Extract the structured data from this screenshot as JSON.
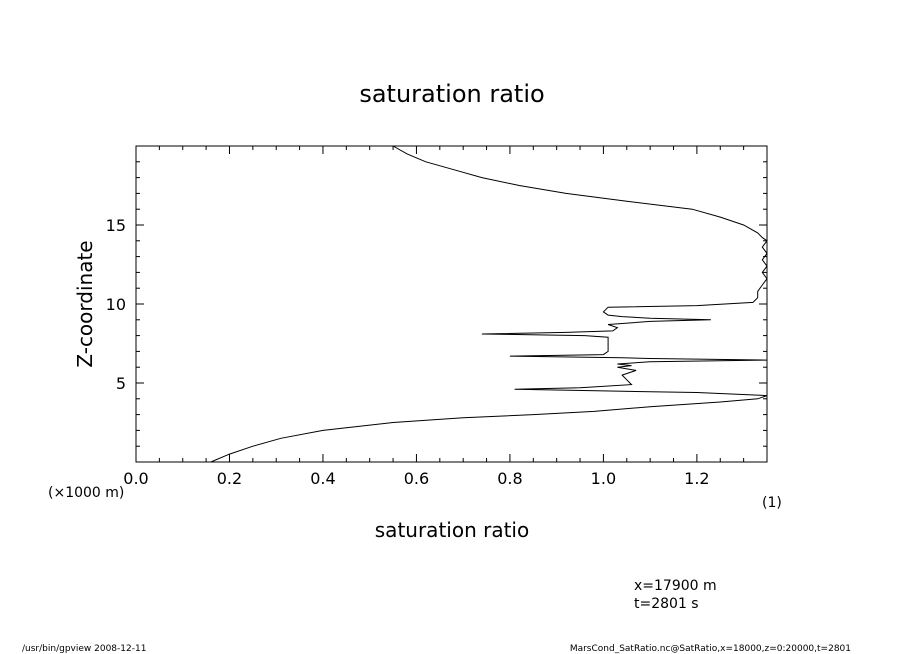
{
  "chart_data": {
    "type": "line",
    "title": "saturation ratio",
    "xlabel": "saturation ratio",
    "ylabel": "Z-coordinate",
    "xunit": "(1)",
    "yunit": "(×1000 m)",
    "xlim": [
      0.0,
      1.35
    ],
    "ylim": [
      0,
      20
    ],
    "x_ticks": [
      0.0,
      0.2,
      0.4,
      0.6,
      0.8,
      1.0,
      1.2
    ],
    "x_tick_labels": [
      "0.0",
      "0.2",
      "0.4",
      "0.6",
      "0.8",
      "1.0",
      "1.2"
    ],
    "y_ticks": [
      5,
      10,
      15
    ],
    "y_tick_labels": [
      "5",
      "10",
      "15"
    ],
    "grid": false,
    "series": [
      {
        "points": [
          [
            0.16,
            0.0
          ],
          [
            0.2,
            0.5
          ],
          [
            0.25,
            1.0
          ],
          [
            0.31,
            1.5
          ],
          [
            0.4,
            2.0
          ],
          [
            0.55,
            2.5
          ],
          [
            0.7,
            2.8
          ],
          [
            0.85,
            3.0
          ],
          [
            0.98,
            3.2
          ],
          [
            1.1,
            3.5
          ],
          [
            1.25,
            3.8
          ],
          [
            1.33,
            4.0
          ],
          [
            1.35,
            4.2
          ],
          [
            1.2,
            4.4
          ],
          [
            1.0,
            4.5
          ],
          [
            0.81,
            4.6
          ],
          [
            0.95,
            4.7
          ],
          [
            1.06,
            4.9
          ],
          [
            1.05,
            5.2
          ],
          [
            1.04,
            5.5
          ],
          [
            1.07,
            5.8
          ],
          [
            1.03,
            6.0
          ],
          [
            1.06,
            6.1
          ],
          [
            1.03,
            6.2
          ],
          [
            1.1,
            6.35
          ],
          [
            1.35,
            6.45
          ],
          [
            1.1,
            6.55
          ],
          [
            1.04,
            6.6
          ],
          [
            0.8,
            6.7
          ],
          [
            1.0,
            6.8
          ],
          [
            1.01,
            7.0
          ],
          [
            1.01,
            7.5
          ],
          [
            1.01,
            7.9
          ],
          [
            0.96,
            8.0
          ],
          [
            0.74,
            8.1
          ],
          [
            0.92,
            8.2
          ],
          [
            1.02,
            8.3
          ],
          [
            1.03,
            8.5
          ],
          [
            1.01,
            8.7
          ],
          [
            1.1,
            8.9
          ],
          [
            1.23,
            9.0
          ],
          [
            1.1,
            9.1
          ],
          [
            1.04,
            9.2
          ],
          [
            1.01,
            9.3
          ],
          [
            1.0,
            9.5
          ],
          [
            1.01,
            9.8
          ],
          [
            1.2,
            9.9
          ],
          [
            1.32,
            10.1
          ],
          [
            1.33,
            10.4
          ],
          [
            1.33,
            10.8
          ],
          [
            1.34,
            11.2
          ],
          [
            1.35,
            11.6
          ],
          [
            1.34,
            12.0
          ],
          [
            1.35,
            12.4
          ],
          [
            1.34,
            12.8
          ],
          [
            1.35,
            13.2
          ],
          [
            1.34,
            13.6
          ],
          [
            1.35,
            14.0
          ],
          [
            1.34,
            14.2
          ],
          [
            1.33,
            14.5
          ],
          [
            1.3,
            15.0
          ],
          [
            1.25,
            15.5
          ],
          [
            1.19,
            16.0
          ],
          [
            1.05,
            16.5
          ],
          [
            0.92,
            17.0
          ],
          [
            0.82,
            17.5
          ],
          [
            0.74,
            18.0
          ],
          [
            0.68,
            18.5
          ],
          [
            0.62,
            19.0
          ],
          [
            0.58,
            19.5
          ],
          [
            0.55,
            20.0
          ]
        ]
      }
    ]
  },
  "annotations": {
    "x_position": "x=17900 m",
    "time": "t=2801 s"
  },
  "footer": {
    "left": "/usr/bin/gpview  2008-12-11",
    "right": "MarsCond_SatRatio.nc@SatRatio,x=18000,z=0:20000,t=2801"
  }
}
